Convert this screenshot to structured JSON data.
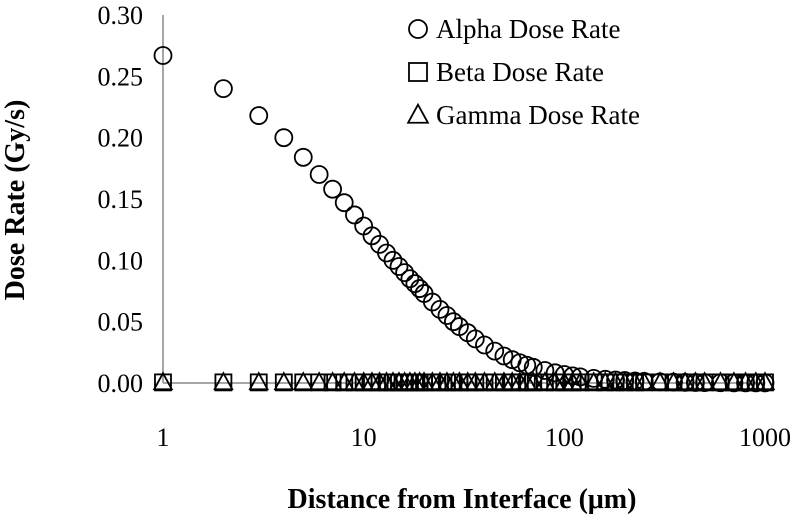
{
  "chart_data": {
    "type": "scatter",
    "title": "",
    "xlabel": "Distance from Interface (μm)",
    "ylabel": "Dose Rate (Gy/s)",
    "xscale": "log",
    "xlim": [
      1,
      1000
    ],
    "ylim": [
      0,
      0.3
    ],
    "x_ticks": [
      "1",
      "10",
      "100",
      "1000"
    ],
    "y_ticks": [
      "0.00",
      "0.05",
      "0.10",
      "0.15",
      "0.20",
      "0.25",
      "0.30"
    ],
    "grid": false,
    "legend_position": "top-right",
    "x": [
      1,
      2,
      3,
      4,
      5,
      6,
      7,
      8,
      9,
      10,
      11,
      12,
      13,
      14,
      15,
      16,
      17,
      18,
      19,
      20,
      22,
      24,
      26,
      28,
      30,
      33,
      36,
      40,
      45,
      50,
      55,
      60,
      65,
      70,
      80,
      90,
      100,
      110,
      120,
      140,
      160,
      180,
      200,
      225,
      250,
      300,
      350,
      400,
      450,
      500,
      600,
      700,
      800,
      900,
      1000
    ],
    "series": [
      {
        "name": "Alpha Dose Rate",
        "marker": "circle",
        "values": [
          0.267,
          0.24,
          0.218,
          0.2,
          0.184,
          0.17,
          0.158,
          0.147,
          0.137,
          0.128,
          0.12,
          0.113,
          0.106,
          0.1,
          0.095,
          0.09,
          0.085,
          0.081,
          0.077,
          0.073,
          0.066,
          0.06,
          0.055,
          0.05,
          0.046,
          0.041,
          0.036,
          0.031,
          0.026,
          0.022,
          0.019,
          0.0165,
          0.0145,
          0.0128,
          0.0102,
          0.0083,
          0.0069,
          0.0058,
          0.005,
          0.0038,
          0.003,
          0.0024,
          0.002,
          0.0016,
          0.0013,
          0.0009,
          0.0007,
          0.0005,
          0.0004,
          0.0003,
          0.0002,
          0.00015,
          0.0001,
          0.0001,
          0.0001
        ]
      },
      {
        "name": "Beta Dose Rate",
        "marker": "square",
        "values": [
          0.0005,
          0.0005,
          0.0005,
          0.0005,
          0.0005,
          0.0005,
          0.0005,
          0.0005,
          0.0005,
          0.0005,
          0.0005,
          0.0005,
          0.0005,
          0.0005,
          0.0005,
          0.0005,
          0.0005,
          0.0005,
          0.0005,
          0.0005,
          0.0005,
          0.0005,
          0.0005,
          0.0005,
          0.0005,
          0.0005,
          0.0005,
          0.0005,
          0.0005,
          0.0005,
          0.0005,
          0.0005,
          0.0005,
          0.0005,
          0.0005,
          0.0005,
          0.0005,
          0.0005,
          0.0005,
          0.0005,
          0.0005,
          0.0005,
          0.0005,
          0.0005,
          0.0005,
          0.0005,
          0.0005,
          0.0005,
          0.0005,
          0.0005,
          0.0005,
          0.0005,
          0.0005,
          0.0005,
          0.0005
        ]
      },
      {
        "name": "Gamma Dose Rate",
        "marker": "triangle",
        "values": [
          0.0005,
          0.0005,
          0.0005,
          0.0005,
          0.0005,
          0.0005,
          0.0005,
          0.0005,
          0.0005,
          0.0005,
          0.0005,
          0.0005,
          0.0005,
          0.0005,
          0.0005,
          0.0005,
          0.0005,
          0.0005,
          0.0005,
          0.0005,
          0.0005,
          0.0005,
          0.0005,
          0.0005,
          0.0005,
          0.0005,
          0.0005,
          0.0005,
          0.0005,
          0.0005,
          0.0005,
          0.0005,
          0.0005,
          0.0005,
          0.0005,
          0.0005,
          0.0005,
          0.0005,
          0.0005,
          0.0005,
          0.0005,
          0.0005,
          0.0005,
          0.0005,
          0.0005,
          0.0005,
          0.0005,
          0.0005,
          0.0005,
          0.0005,
          0.0005,
          0.0005,
          0.0005,
          0.0005,
          0.0005
        ]
      }
    ]
  }
}
